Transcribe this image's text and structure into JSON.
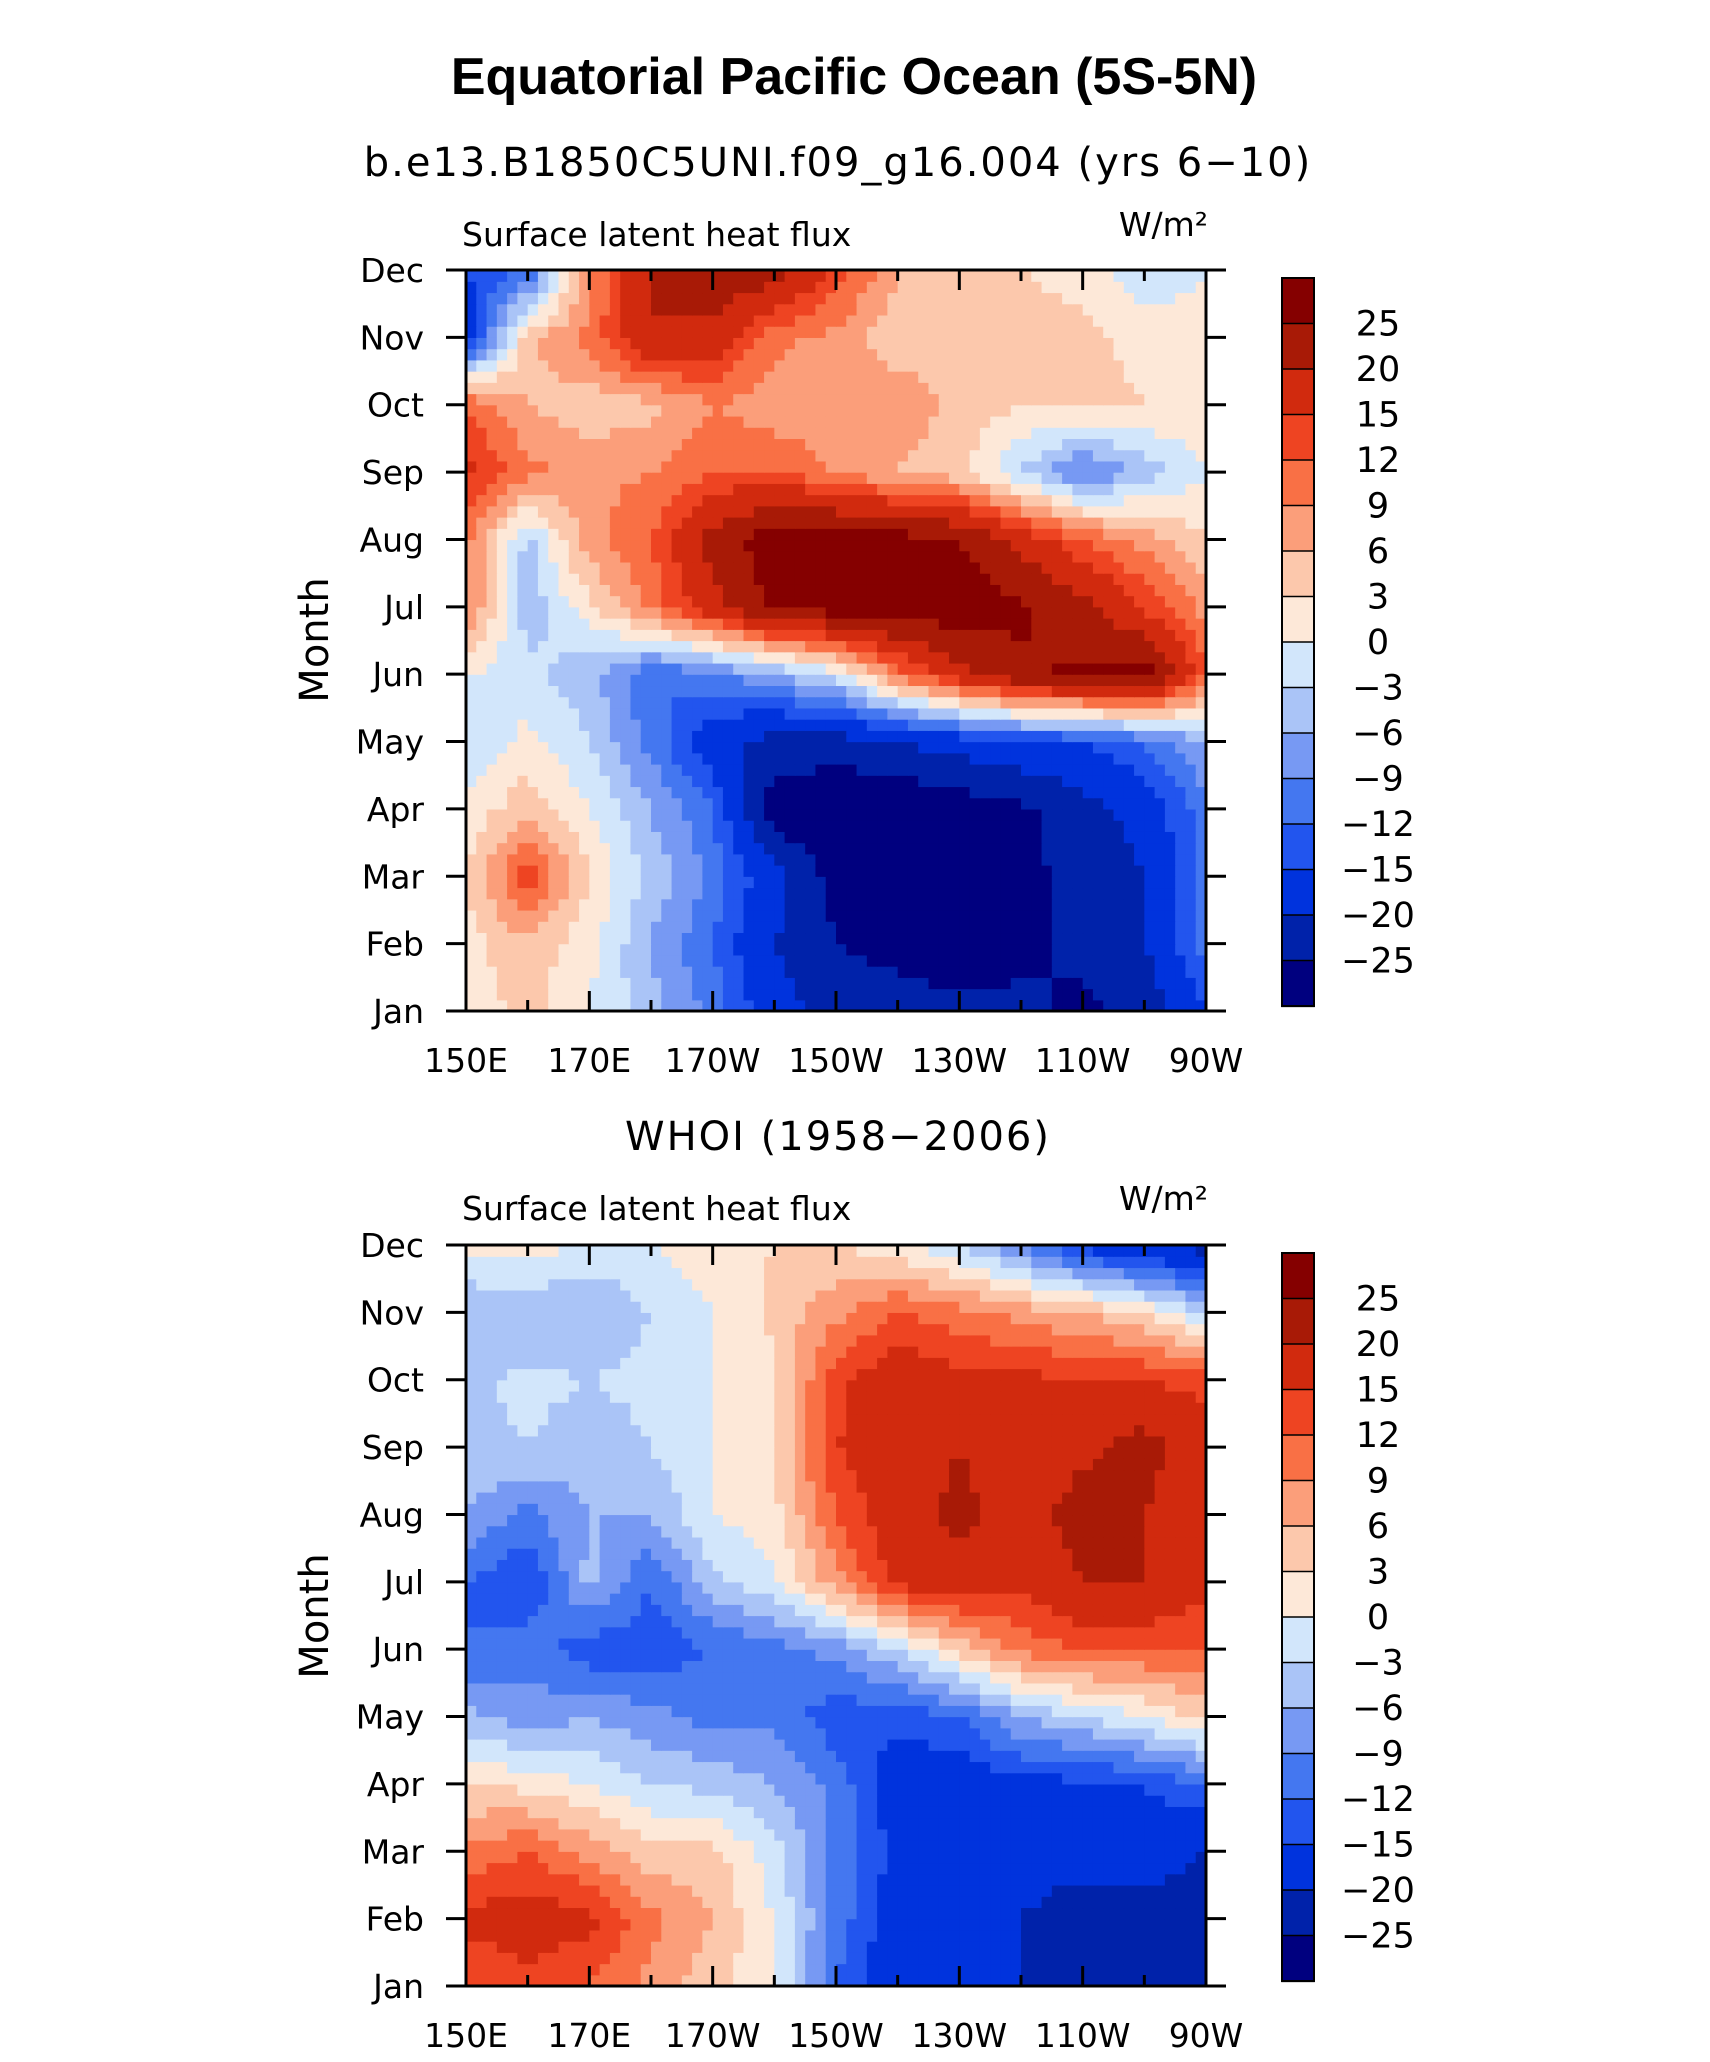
{
  "figure": {
    "title": "Equatorial Pacific Ocean (5S-5N)"
  },
  "chart_data": [
    {
      "type": "heatmap",
      "title": "b.e13.B1850C5UNI.f09_g16.004 (yrs 6−10)",
      "left_label": "Surface latent heat flux",
      "units": "W/m²",
      "ylabel": "Month",
      "x_ticks": [
        "150E",
        "170E",
        "170W",
        "150W",
        "130W",
        "110W",
        "90W"
      ],
      "x_values_deg_east": [
        150,
        170,
        190,
        210,
        230,
        250,
        270
      ],
      "y_ticks": [
        "Jan",
        "Feb",
        "Mar",
        "Apr",
        "May",
        "Jun",
        "Jul",
        "Aug",
        "Sep",
        "Oct",
        "Nov",
        "Dec"
      ],
      "xlim": [
        150,
        270
      ],
      "levels": [
        -25,
        -20,
        -15,
        -12,
        -9,
        -6,
        -3,
        0,
        3,
        6,
        9,
        12,
        15,
        20,
        25
      ],
      "level_labels": [
        "25",
        "20",
        "15",
        "12",
        "9",
        "6",
        "3",
        "0",
        "−3",
        "−6",
        "−9",
        "−12",
        "−15",
        "−20",
        "−25"
      ],
      "colors": [
        "#00007f",
        "#0022aa",
        "#0033dd",
        "#2255ee",
        "#4477f0",
        "#7799f3",
        "#aac4f7",
        "#d2e6fb",
        "#fde8d8",
        "#fcc8ac",
        "#fb9e7a",
        "#f97045",
        "#ee4422",
        "#d12a0e",
        "#a81a06",
        "#850000"
      ],
      "grid_lon": [
        150,
        160,
        170,
        180,
        190,
        200,
        210,
        220,
        230,
        240,
        250,
        260,
        270
      ],
      "grid_values": [
        [
          1,
          4,
          0,
          -5,
          -10,
          -18,
          -22,
          -22,
          -24,
          -24,
          -26,
          -24,
          -15
        ],
        [
          2,
          5,
          1,
          -6,
          -12,
          -20,
          -25,
          -27,
          -28,
          -26,
          -24,
          -20,
          -10
        ],
        [
          3,
          14,
          3,
          -4,
          -10,
          -18,
          -27,
          -28,
          -28,
          -26,
          -24,
          -20,
          -10
        ],
        [
          1,
          5,
          0,
          -6,
          -12,
          -28,
          -30,
          -30,
          -28,
          -26,
          -22,
          -18,
          -10
        ],
        [
          -3,
          1,
          -3,
          -10,
          -18,
          -22,
          -22,
          -20,
          -18,
          -16,
          -15,
          -12,
          -6
        ],
        [
          0,
          -2,
          -5,
          -12,
          -10,
          -6,
          -2,
          10,
          18,
          24,
          26,
          28,
          12
        ],
        [
          10,
          -5,
          2,
          10,
          18,
          26,
          28,
          28,
          28,
          26,
          22,
          14,
          8
        ],
        [
          10,
          -4,
          8,
          12,
          22,
          28,
          28,
          27,
          25,
          18,
          12,
          8,
          3
        ],
        [
          16,
          10,
          8,
          9,
          12,
          12,
          9,
          6,
          4,
          -3,
          -10,
          -5,
          0
        ],
        [
          12,
          6,
          4,
          5,
          9,
          7,
          6,
          8,
          5,
          3,
          4,
          3,
          2
        ],
        [
          -18,
          5,
          10,
          20,
          18,
          10,
          8,
          4,
          6,
          4,
          4,
          2,
          2
        ],
        [
          -15,
          -12,
          8,
          20,
          25,
          22,
          14,
          6,
          3,
          3,
          2,
          -3,
          0
        ]
      ]
    },
    {
      "type": "heatmap",
      "title": "WHOI (1958−2006)",
      "left_label": "Surface latent heat flux",
      "units": "W/m²",
      "ylabel": "Month",
      "x_ticks": [
        "150E",
        "170E",
        "170W",
        "150W",
        "130W",
        "110W",
        "90W"
      ],
      "x_values_deg_east": [
        150,
        170,
        190,
        210,
        230,
        250,
        270
      ],
      "y_ticks": [
        "Jan",
        "Feb",
        "Mar",
        "Apr",
        "May",
        "Jun",
        "Jul",
        "Aug",
        "Sep",
        "Oct",
        "Nov",
        "Dec"
      ],
      "xlim": [
        150,
        270
      ],
      "levels": [
        -25,
        -20,
        -15,
        -12,
        -9,
        -6,
        -3,
        0,
        3,
        6,
        9,
        12,
        15,
        20,
        25
      ],
      "level_labels": [
        "25",
        "20",
        "15",
        "12",
        "9",
        "6",
        "3",
        "0",
        "−3",
        "−6",
        "−9",
        "−12",
        "−15",
        "−20",
        "−25"
      ],
      "colors": [
        "#00007f",
        "#0022aa",
        "#0033dd",
        "#2255ee",
        "#4477f0",
        "#7799f3",
        "#aac4f7",
        "#d2e6fb",
        "#fde8d8",
        "#fcc8ac",
        "#fb9e7a",
        "#f97045",
        "#ee4422",
        "#d12a0e",
        "#a81a06",
        "#850000"
      ],
      "grid_lon": [
        150,
        160,
        170,
        180,
        190,
        200,
        210,
        220,
        230,
        240,
        250,
        260,
        270
      ],
      "grid_values": [
        [
          12,
          14,
          12,
          8,
          4,
          0,
          -12,
          -18,
          -20,
          -20,
          -22,
          -24,
          -25
        ],
        [
          16,
          17,
          16,
          10,
          6,
          0,
          -10,
          -18,
          -20,
          -20,
          -24,
          -22,
          -25
        ],
        [
          10,
          12,
          8,
          4,
          4,
          -2,
          -10,
          -16,
          -17,
          -17,
          -17,
          -17,
          -20
        ],
        [
          3,
          2,
          0,
          -3,
          -4,
          -6,
          -10,
          -18,
          -18,
          -16,
          -16,
          -15,
          -12
        ],
        [
          -5,
          -8,
          -6,
          -8,
          -10,
          -10,
          -14,
          -14,
          -12,
          -6,
          -3,
          0,
          4
        ],
        [
          -12,
          -10,
          -14,
          -14,
          -12,
          -10,
          -8,
          -3,
          4,
          10,
          12,
          12,
          12
        ],
        [
          -12,
          -15,
          -5,
          -12,
          -4,
          -1,
          8,
          16,
          18,
          16,
          20,
          20,
          16
        ],
        [
          -6,
          -10,
          -6,
          -6,
          0,
          2,
          12,
          18,
          21,
          18,
          22,
          20,
          16
        ],
        [
          -4,
          -3,
          -5,
          -3,
          0,
          3,
          15,
          17,
          20,
          17,
          19,
          22,
          16
        ],
        [
          -4,
          -2,
          -3,
          -2,
          0,
          2,
          14,
          18,
          16,
          16,
          15,
          15,
          14
        ],
        [
          -6,
          -6,
          -6,
          -3,
          0,
          4,
          8,
          12,
          10,
          8,
          6,
          3,
          -3
        ],
        [
          1,
          2,
          -1,
          0,
          2,
          3,
          3,
          1,
          -3,
          -9,
          -16,
          -20,
          -22
        ]
      ]
    }
  ]
}
